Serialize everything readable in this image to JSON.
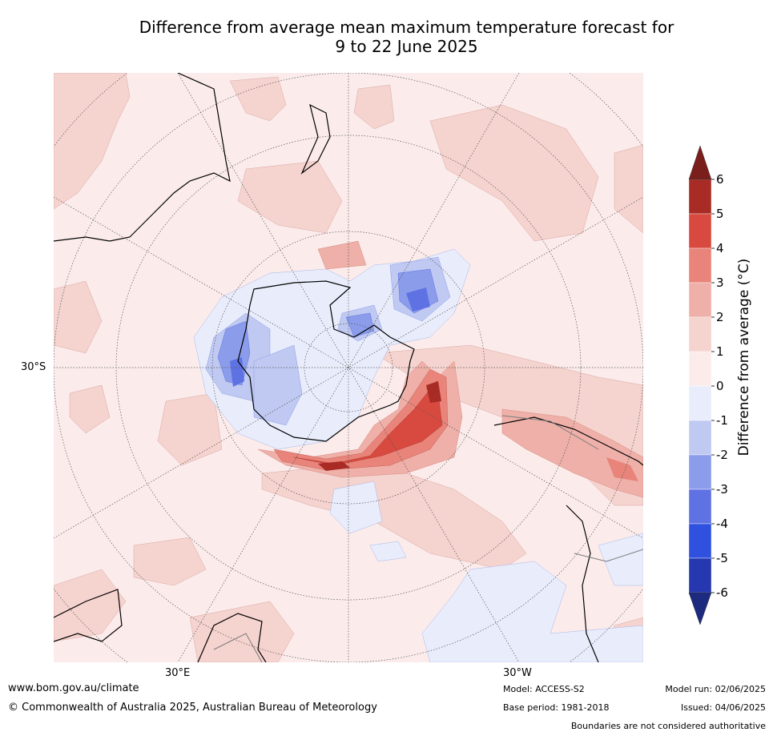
{
  "title_line1": "Difference from average mean maximum temperature forecast for",
  "title_line2": "9 to 22 June 2025",
  "map": {
    "lat_label_left": "30°S",
    "lon_label_1": "30°E",
    "lon_label_2": "30°W"
  },
  "colorbar": {
    "label": "Difference from average (°C)",
    "ticks": [
      "6",
      "5",
      "4",
      "3",
      "2",
      "1",
      "0",
      "-1",
      "-2",
      "-3",
      "-4",
      "-5",
      "-6"
    ],
    "colors": [
      "#a82b25",
      "#d84a3f",
      "#e8847a",
      "#eeb0a8",
      "#f5d3cf",
      "#fbeceb",
      "#e9edfb",
      "#c0c9f1",
      "#8b9ceb",
      "#5f72e3",
      "#3050e0",
      "#2538b0"
    ],
    "top_arrow_color": "#7a1f1c",
    "bottom_arrow_color": "#1c2a80"
  },
  "footer": {
    "website": "www.bom.gov.au/climate",
    "copyright": "© Commonwealth of Australia 2025, Australian Bureau of Meteorology",
    "model": "Model: ACCESS-S2",
    "base_period": "Base period: 1981-2018",
    "model_run": "Model run: 02/06/2025",
    "issued": "Issued: 04/06/2025",
    "disclaimer": "Boundaries are not considered authoritative"
  }
}
